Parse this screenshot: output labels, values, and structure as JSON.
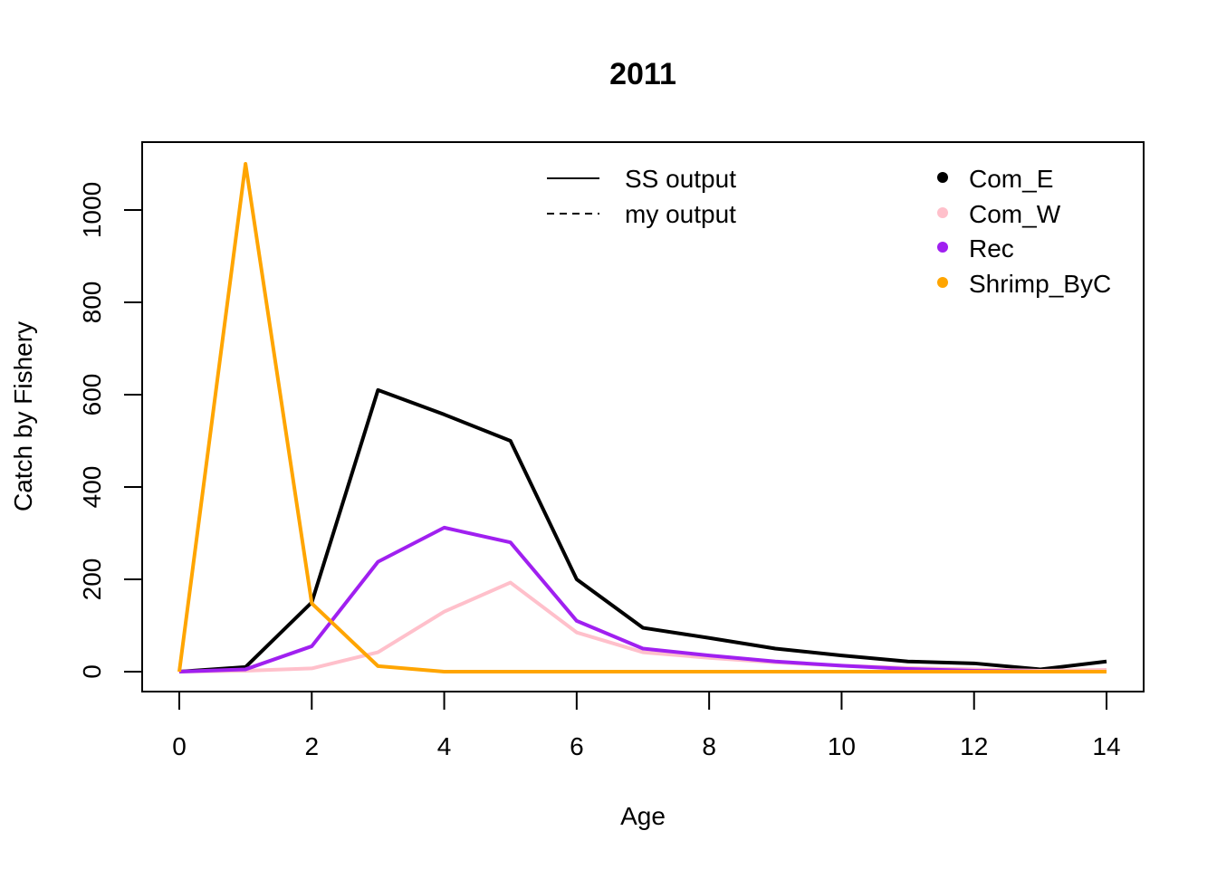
{
  "chart_data": {
    "type": "line",
    "title": "2011",
    "xlabel": "Age",
    "ylabel": "Catch by Fishery",
    "xlim": [
      0,
      14
    ],
    "ylim": [
      0,
      1100
    ],
    "x_ticks": [
      "0",
      "2",
      "4",
      "6",
      "8",
      "10",
      "12",
      "14"
    ],
    "y_ticks": [
      "0",
      "200",
      "400",
      "600",
      "800",
      "1000"
    ],
    "grid": false,
    "x": [
      0,
      1,
      2,
      3,
      4,
      5,
      6,
      7,
      8,
      9,
      10,
      11,
      12,
      13,
      14
    ],
    "line_style_legend": {
      "placement": "top-center",
      "entries": [
        {
          "label": "SS output",
          "dash": "solid"
        },
        {
          "label": "my output",
          "dash": "dashed"
        }
      ]
    },
    "series_legend": {
      "placement": "top-right",
      "entries": [
        "Com_E",
        "Com_W",
        "Rec",
        "Shrimp_ByC"
      ]
    },
    "series": [
      {
        "name": "Com_E",
        "color": "#000000",
        "values": [
          0,
          10,
          150,
          610,
          557,
          500,
          200,
          95,
          73,
          50,
          35,
          22,
          18,
          5,
          22
        ]
      },
      {
        "name": "Com_W",
        "color": "#FFC0CB",
        "values": [
          0,
          2,
          7,
          42,
          130,
          193,
          85,
          42,
          30,
          20,
          13,
          8,
          5,
          2,
          4
        ]
      },
      {
        "name": "Rec",
        "color": "#A020F0",
        "values": [
          0,
          5,
          55,
          238,
          312,
          280,
          110,
          50,
          35,
          22,
          13,
          6,
          2,
          0,
          0
        ]
      },
      {
        "name": "Shrimp_ByC",
        "color": "#FFA500",
        "values": [
          0,
          1100,
          148,
          12,
          0,
          0,
          0,
          0,
          0,
          0,
          0,
          0,
          0,
          0,
          0
        ]
      }
    ]
  }
}
